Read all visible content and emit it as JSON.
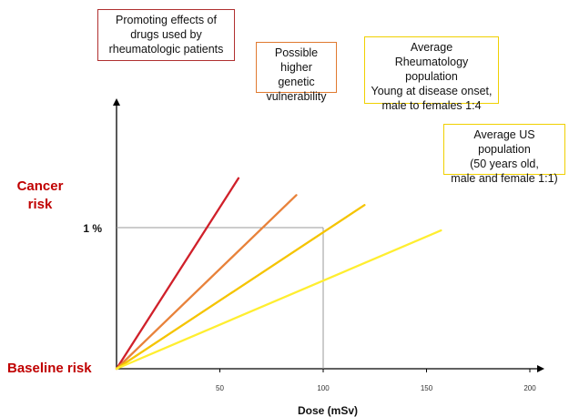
{
  "chart_data": {
    "type": "line",
    "title": "",
    "xlabel": "Dose (mSv)",
    "ylabel": [
      "Cancer",
      "risk"
    ],
    "baseline_label": "Baseline risk",
    "reference": {
      "x": 100,
      "y_label": "1 %"
    },
    "x_ticks": [
      50,
      100,
      150,
      200
    ],
    "xlim": [
      0,
      210
    ],
    "ylim": [
      0,
      1.35
    ],
    "grid": false,
    "series": [
      {
        "name": "Promoting effects of drugs used by rheumatologic patients",
        "lines": [
          "Promoting effects  of",
          "drugs  used by",
          "rheumatologic  patients"
        ],
        "color": "#d0202a",
        "border": "#b03030",
        "x_end": 59,
        "y_end": 1.35
      },
      {
        "name": "Possible higher genetic vulnerability",
        "lines": [
          "Possible higher",
          "genetic",
          "vulnerability"
        ],
        "color": "#e8823a",
        "border": "#e07a30",
        "x_end": 87,
        "y_end": 1.23
      },
      {
        "name": "Average Rheumatology population Young at disease onset, male to females 1:4",
        "lines": [
          "Average",
          "Rheumatology population",
          "Young at disease onset,",
          "male to females 1:4"
        ],
        "color": "#f5c400",
        "border": "#f0d000",
        "x_end": 120,
        "y_end": 1.16
      },
      {
        "name": "Average US population (50 years old, male and female 1:1)",
        "lines": [
          "Average US population",
          "(50 years old,",
          "male and female 1:1)"
        ],
        "color": "#ffee30",
        "border": "#f0d000",
        "x_end": 157,
        "y_end": 0.98
      }
    ]
  }
}
